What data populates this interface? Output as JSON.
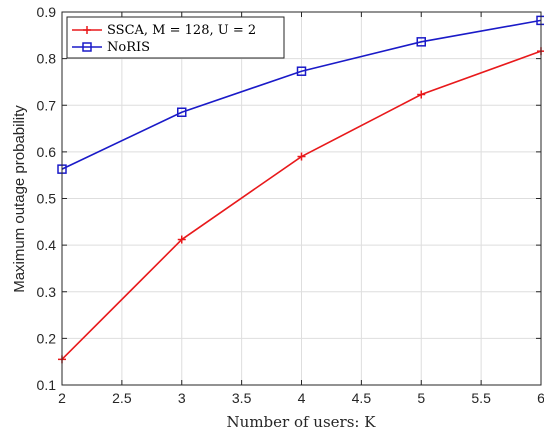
{
  "chart_data": {
    "type": "line",
    "title": "",
    "xlabel": "Number of users: K",
    "ylabel": "Maximum outage probability",
    "xlim": [
      2,
      6
    ],
    "ylim": [
      0.1,
      0.9
    ],
    "x_ticks": [
      "2",
      "2.5",
      "3",
      "3.5",
      "4",
      "4.5",
      "5",
      "5.5",
      "6"
    ],
    "y_ticks": [
      "0.1",
      "0.2",
      "0.3",
      "0.4",
      "0.5",
      "0.6",
      "0.7",
      "0.8",
      "0.9"
    ],
    "x_tick_values": [
      2,
      2.5,
      3,
      3.5,
      4,
      4.5,
      5,
      5.5,
      6
    ],
    "y_tick_values": [
      0.1,
      0.2,
      0.3,
      0.4,
      0.5,
      0.6,
      0.7,
      0.8,
      0.9
    ],
    "grid": true,
    "legend_position": "top-left",
    "x": [
      2,
      3,
      4,
      5,
      6
    ],
    "series": [
      {
        "name": "SSCA, M = 128, U = 2",
        "values": [
          0.155,
          0.412,
          0.59,
          0.723,
          0.816
        ],
        "color": "#e8191b",
        "marker": "plus"
      },
      {
        "name": "NoRIS",
        "values": [
          0.563,
          0.685,
          0.773,
          0.836,
          0.882
        ],
        "color": "#1a1ac8",
        "marker": "square"
      }
    ]
  }
}
